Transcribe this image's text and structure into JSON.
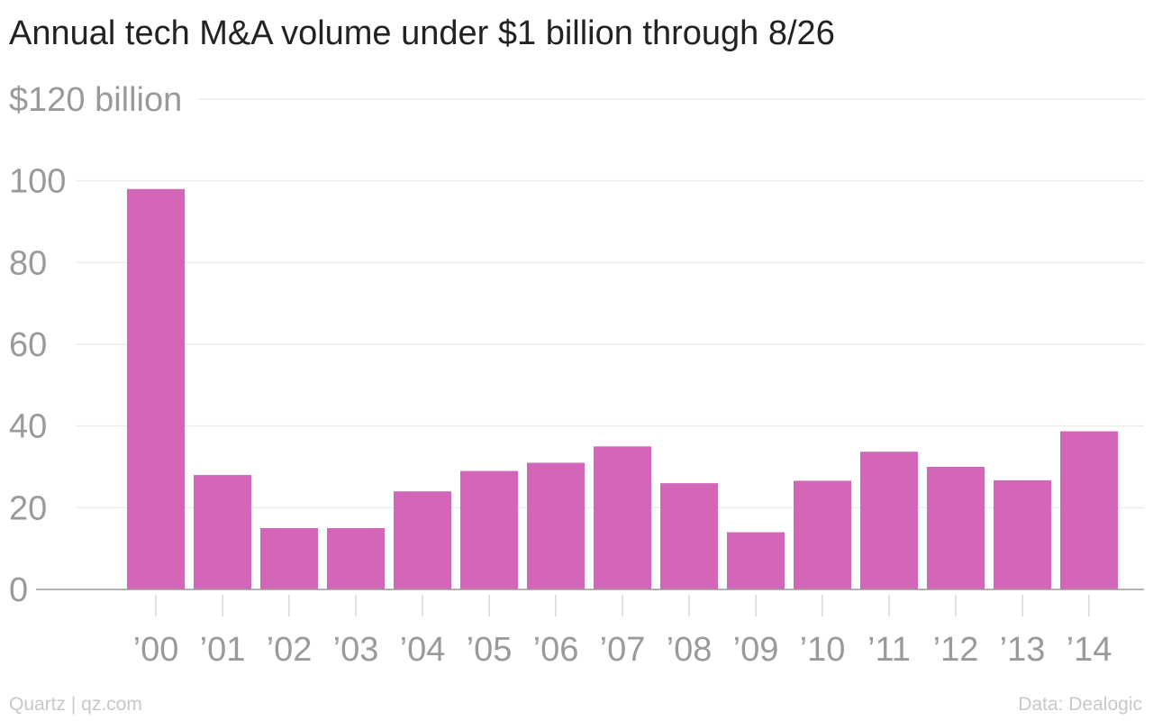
{
  "chart_data": {
    "type": "bar",
    "title": "Annual tech M&A volume under $1 billion through 8/26",
    "categories": [
      "’00",
      "’01",
      "’02",
      "’03",
      "’04",
      "’05",
      "’06",
      "’07",
      "’08",
      "’09",
      "’10",
      "’11",
      "’12",
      "’13",
      "’14"
    ],
    "values": [
      98,
      28,
      15,
      15,
      24,
      29,
      31,
      35,
      26,
      14,
      26.6,
      33.7,
      30,
      26.7,
      38.7
    ],
    "ylim": [
      0,
      120
    ],
    "yticks": [
      0,
      20,
      40,
      60,
      80,
      100,
      120
    ],
    "ytick_labels": [
      "0",
      "20",
      "40",
      "60",
      "80",
      "100",
      "$120 billion"
    ],
    "xlabel": "",
    "ylabel": "",
    "grid": true,
    "legend": "none",
    "bar_color": "#d366b8"
  },
  "footer": {
    "source_left": "Quartz | qz.com",
    "source_right": "Data: Dealogic"
  }
}
